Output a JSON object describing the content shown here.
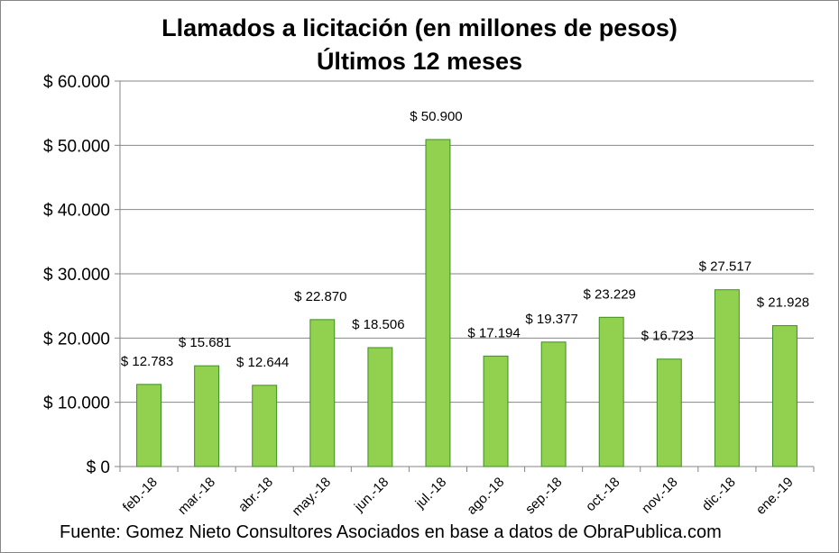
{
  "chart_data": {
    "type": "bar",
    "title": "Llamados a licitación (en millones de pesos)",
    "subtitle": "Últimos 12 meses",
    "xlabel": "",
    "ylabel": "",
    "categories": [
      "feb.-18",
      "mar.-18",
      "abr.-18",
      "may.-18",
      "jun.-18",
      "jul.-18",
      "ago.-18",
      "sep.-18",
      "oct.-18",
      "nov.-18",
      "dic.-18",
      "ene.-19"
    ],
    "values": [
      12783,
      15681,
      12644,
      22870,
      18506,
      50900,
      17194,
      19377,
      23229,
      16723,
      27517,
      21928
    ],
    "data_labels": [
      "$ 12.783",
      "$ 15.681",
      "$ 12.644",
      "$ 22.870",
      "$ 18.506",
      "$ 50.900",
      "$ 17.194",
      "$ 19.377",
      "$ 23.229",
      "$ 16.723",
      "$ 27.517",
      "$ 21.928"
    ],
    "ylim": [
      0,
      60000
    ],
    "yticks": [
      0,
      10000,
      20000,
      30000,
      40000,
      50000,
      60000
    ],
    "ytick_labels": [
      "$ 0",
      "$ 10.000",
      "$ 20.000",
      "$ 30.000",
      "$ 40.000",
      "$ 50.000",
      "$ 60.000"
    ],
    "grid": true,
    "legend": "none",
    "bar_color": "#92D050",
    "bar_edge_color": "#3E8E21",
    "source": "Fuente: Gomez Nieto Consultores Asociados en base a datos de ObraPublica.com"
  }
}
